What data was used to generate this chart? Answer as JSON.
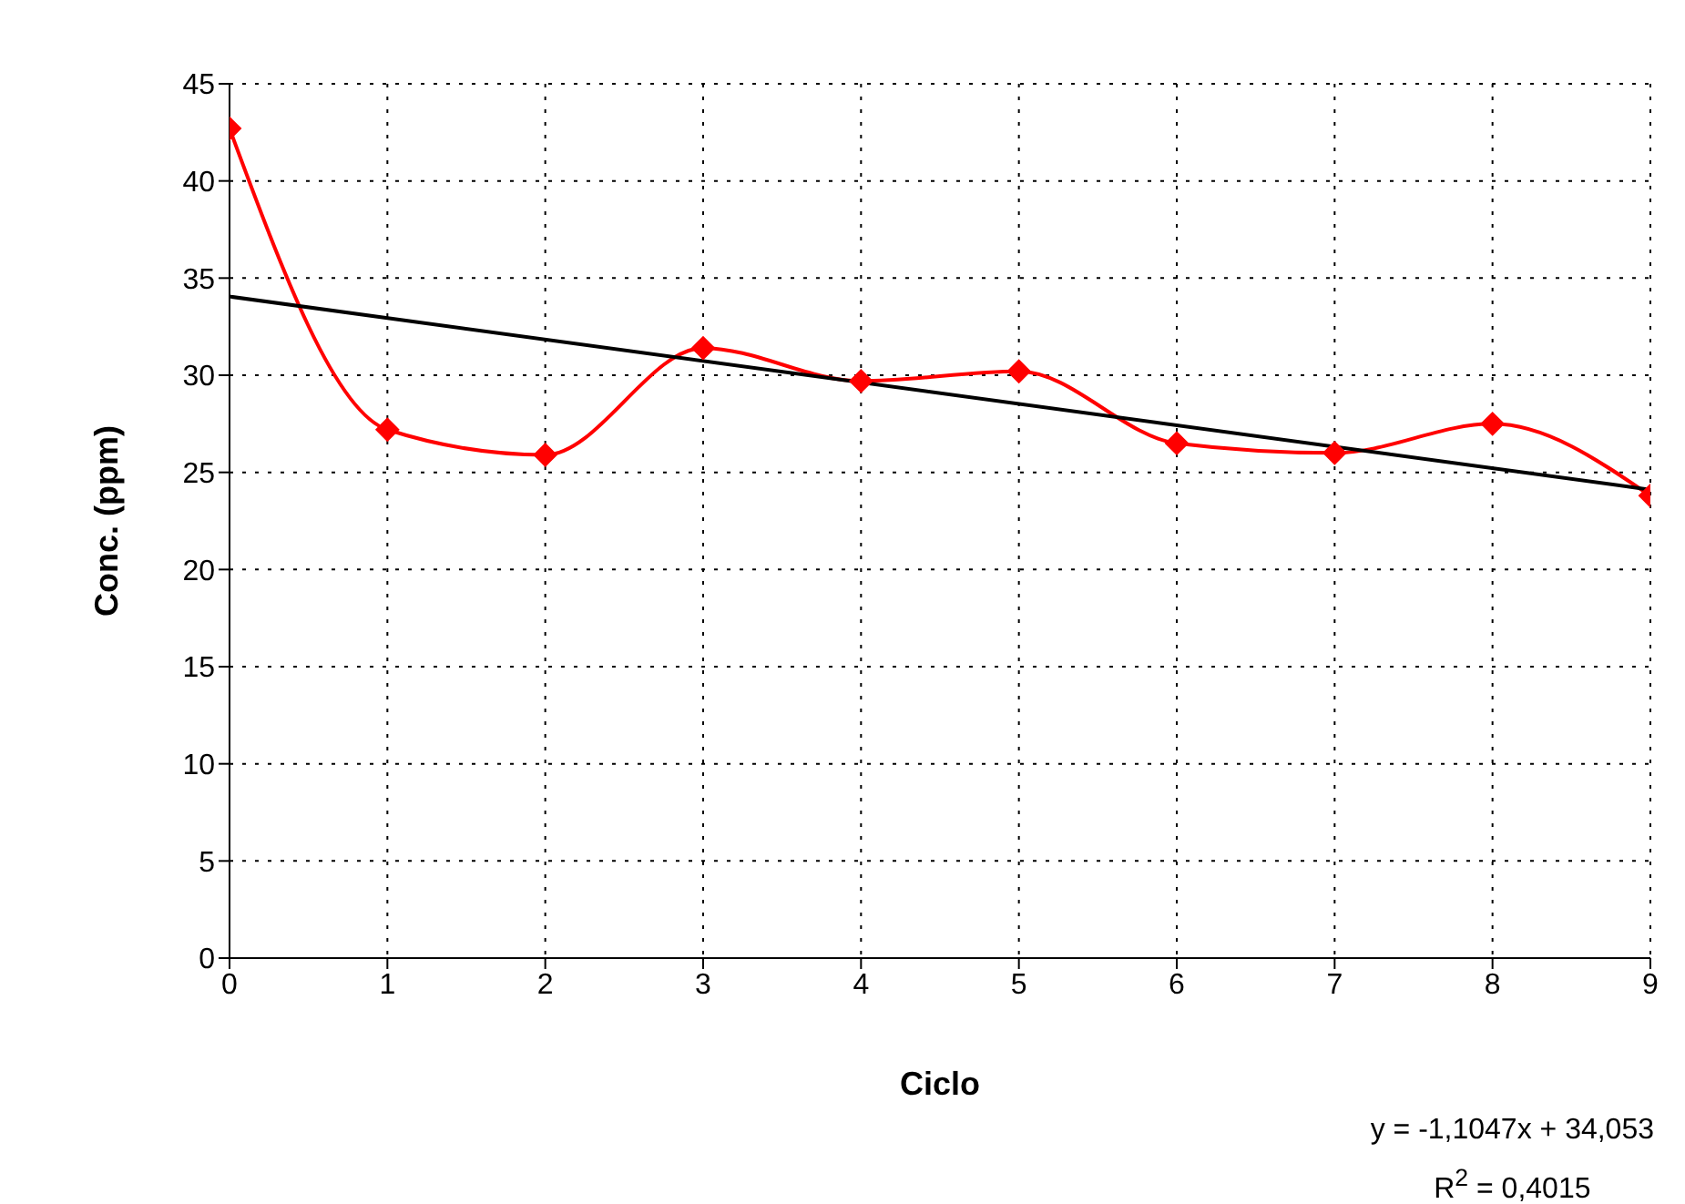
{
  "chart_data": {
    "type": "line",
    "xlabel": "Ciclo",
    "ylabel": "Conc. (ppm)",
    "x": [
      0,
      1,
      2,
      3,
      4,
      5,
      6,
      7,
      8,
      9
    ],
    "series": [
      {
        "color": "#ff0000",
        "values": [
          42.7,
          27.2,
          25.9,
          31.4,
          29.7,
          30.2,
          26.5,
          26.0,
          27.5,
          23.8
        ],
        "marker": "diamond"
      },
      {
        "type": "line",
        "color": "#000000",
        "x": [
          0,
          9
        ],
        "values": [
          34.05,
          24.11
        ],
        "marker": "none"
      }
    ],
    "xlim": [
      0,
      9
    ],
    "xticks": [
      0,
      1,
      2,
      3,
      4,
      5,
      6,
      7,
      8,
      9
    ],
    "ylim": [
      0,
      45
    ],
    "yticks": [
      0,
      5,
      10,
      15,
      20,
      25,
      30,
      35,
      40,
      45
    ],
    "grid": true,
    "line_style": "solid",
    "annotations": [
      "y = -1,1047x + 34,053",
      "R$^{2}$ = 0,4015"
    ]
  }
}
